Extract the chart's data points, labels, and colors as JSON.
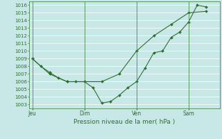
{
  "title": "Pression niveau de la mer( hPa )",
  "bg_color": "#c8e8e8",
  "grid_color": "#ffffff",
  "line_color": "#2d6e2d",
  "ylim": [
    1002.5,
    1016.5
  ],
  "yticks": [
    1003,
    1004,
    1005,
    1006,
    1007,
    1008,
    1009,
    1010,
    1011,
    1012,
    1013,
    1014,
    1015,
    1016
  ],
  "xtick_labels": [
    "Jeu",
    "Dim",
    "Ven",
    "Sam"
  ],
  "xtick_positions": [
    0,
    3,
    6,
    9
  ],
  "vline_positions": [
    0,
    3,
    6,
    9
  ],
  "xlim": [
    -0.2,
    10.8
  ],
  "line1_x": [
    0,
    0.5,
    1,
    1.5,
    2,
    2.5,
    3,
    3.5,
    4,
    4.5,
    5,
    5.5,
    6,
    6.5,
    7,
    7.5,
    8,
    8.5,
    9,
    9.5,
    10
  ],
  "line1_y": [
    1009,
    1008,
    1007.2,
    1006.5,
    1006,
    1006,
    1006,
    1005.2,
    1003.2,
    1003.4,
    1004.2,
    1005.2,
    1006,
    1007.8,
    1009.8,
    1010,
    1011.8,
    1012.5,
    1013.8,
    1016,
    1015.8
  ],
  "line2_x": [
    0,
    1,
    2,
    3,
    4,
    5,
    6,
    7,
    8,
    9,
    10
  ],
  "line2_y": [
    1009,
    1007,
    1006,
    1006,
    1006,
    1007,
    1010,
    1012,
    1013.5,
    1015,
    1015.2
  ]
}
